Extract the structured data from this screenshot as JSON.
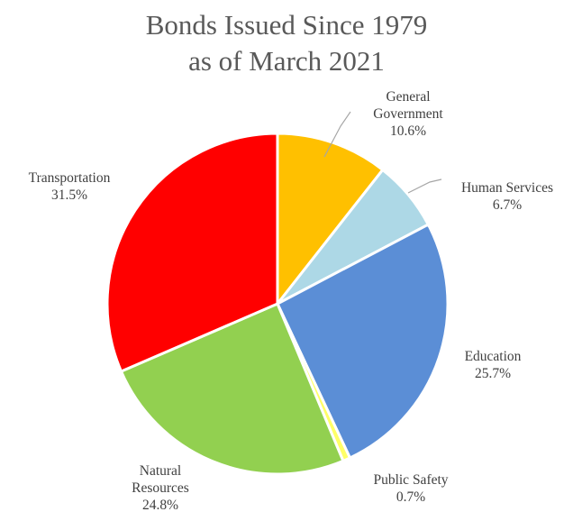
{
  "chart_data": {
    "type": "pie",
    "title": [
      "Bonds Issued Since 1979",
      "as of March 2021"
    ],
    "slices": [
      {
        "name": "General Government",
        "label_lines": [
          "General",
          "Government"
        ],
        "value": 10.6,
        "value_label": "10.6%",
        "color": "#FFC000"
      },
      {
        "name": "Human Services",
        "label_lines": [
          "Human Services"
        ],
        "value": 6.7,
        "value_label": "6.7%",
        "color": "#ADD8E6"
      },
      {
        "name": "Education",
        "label_lines": [
          "Education"
        ],
        "value": 25.7,
        "value_label": "25.7%",
        "color": "#5B8ED6"
      },
      {
        "name": "Public Safety",
        "label_lines": [
          "Public Safety"
        ],
        "value": 0.7,
        "value_label": "0.7%",
        "color": "#FFFF66"
      },
      {
        "name": "Natural Resources",
        "label_lines": [
          "Natural",
          "Resources"
        ],
        "value": 24.8,
        "value_label": "24.8%",
        "color": "#92D050"
      },
      {
        "name": "Transportation",
        "label_lines": [
          "Transportation"
        ],
        "value": 31.5,
        "value_label": "31.5%",
        "color": "#FF0000"
      }
    ],
    "start_angle": "12 o'clock",
    "direction": "clockwise",
    "legend": "none",
    "labels": "outside with leader lines"
  }
}
